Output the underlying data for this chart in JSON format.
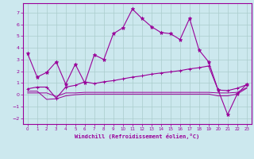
{
  "xlabel": "Windchill (Refroidissement éolien,°C)",
  "background_color": "#cce8ee",
  "grid_color": "#aacccc",
  "line_color": "#990099",
  "ylim": [
    -2.5,
    7.8
  ],
  "xlim": [
    -0.5,
    23.5
  ],
  "yticks": [
    -2,
    -1,
    0,
    1,
    2,
    3,
    4,
    5,
    6,
    7
  ],
  "x_ticks": [
    0,
    1,
    2,
    3,
    4,
    5,
    6,
    7,
    8,
    9,
    10,
    11,
    12,
    13,
    14,
    15,
    16,
    17,
    18,
    19,
    20,
    21,
    22,
    23
  ],
  "series1_x": [
    0,
    1,
    2,
    3,
    4,
    5,
    6,
    7,
    8,
    9,
    10,
    11,
    12,
    13,
    14,
    15,
    16,
    17,
    18,
    19,
    20,
    21,
    22,
    23
  ],
  "series1_y": [
    3.5,
    1.5,
    1.9,
    2.8,
    0.9,
    2.6,
    1.0,
    3.4,
    3.0,
    5.2,
    5.7,
    7.3,
    6.5,
    5.8,
    5.3,
    5.2,
    4.7,
    6.5,
    3.8,
    2.8,
    0.4,
    -1.7,
    0.05,
    0.9
  ],
  "series2_x": [
    0,
    1,
    2,
    3,
    4,
    5,
    6,
    7,
    8,
    9,
    10,
    11,
    12,
    13,
    14,
    15,
    16,
    17,
    18,
    19,
    20,
    21,
    22,
    23
  ],
  "series2_y": [
    0.5,
    0.65,
    0.65,
    -0.3,
    0.65,
    0.8,
    1.1,
    0.95,
    1.1,
    1.2,
    1.35,
    1.5,
    1.6,
    1.75,
    1.85,
    1.95,
    2.05,
    2.2,
    2.3,
    2.45,
    0.4,
    0.35,
    0.55,
    0.85
  ],
  "series3_x": [
    0,
    1,
    2,
    3,
    4,
    5,
    6,
    7,
    8,
    9,
    10,
    11,
    12,
    13,
    14,
    15,
    16,
    17,
    18,
    19,
    20,
    21,
    22,
    23
  ],
  "series3_y": [
    0.15,
    0.15,
    0.15,
    -0.15,
    0.15,
    0.15,
    0.2,
    0.2,
    0.2,
    0.2,
    0.2,
    0.2,
    0.2,
    0.2,
    0.2,
    0.2,
    0.2,
    0.2,
    0.2,
    0.2,
    0.15,
    0.15,
    0.2,
    0.6
  ],
  "series4_x": [
    0,
    1,
    2,
    3,
    4,
    5,
    6,
    7,
    8,
    9,
    10,
    11,
    12,
    13,
    14,
    15,
    16,
    17,
    18,
    19,
    20,
    21,
    22,
    23
  ],
  "series4_y": [
    0.3,
    0.3,
    -0.4,
    -0.35,
    -0.1,
    0.0,
    0.05,
    0.05,
    0.05,
    0.05,
    0.05,
    0.05,
    0.05,
    0.05,
    0.05,
    0.05,
    0.05,
    0.05,
    0.05,
    0.05,
    -0.1,
    -0.1,
    0.05,
    0.55
  ]
}
